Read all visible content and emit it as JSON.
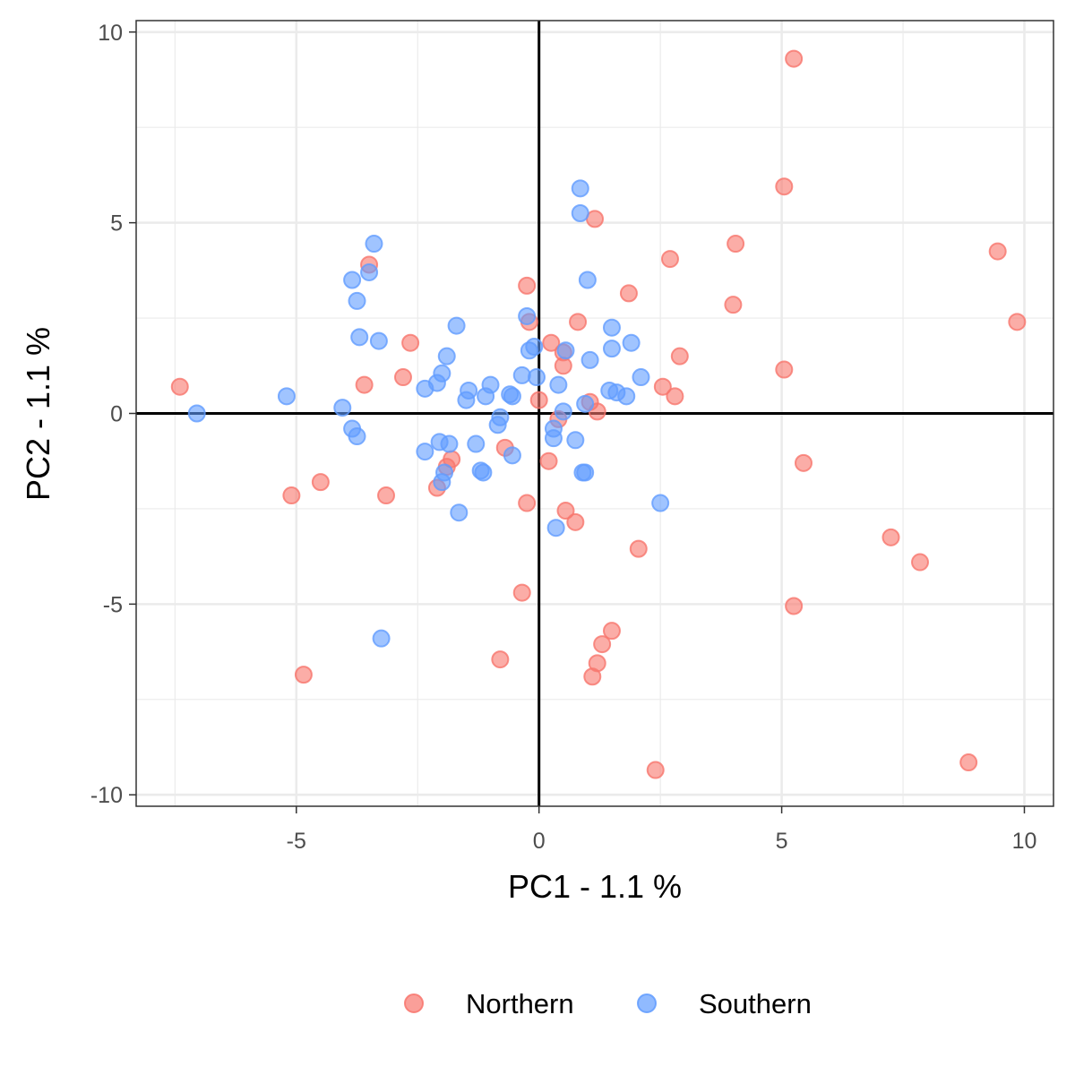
{
  "chart_data": {
    "type": "scatter",
    "title": "",
    "xlabel": "PC1 - 1.1 %",
    "ylabel": "PC2 - 1.1 %",
    "xlim": [
      -8.3,
      10.6
    ],
    "ylim": [
      -10.3,
      10.3
    ],
    "x_ticks": [
      -5,
      0,
      5,
      10
    ],
    "y_ticks": [
      -10,
      -5,
      0,
      5,
      10
    ],
    "x_tick_labels": [
      "-5",
      "0",
      "5",
      "10"
    ],
    "y_tick_labels": [
      "-10",
      "-5",
      "0",
      "5",
      "10"
    ],
    "grid": true,
    "reference_lines": {
      "x": 0,
      "y": 0
    },
    "legend_position": "bottom",
    "series": [
      {
        "name": "Northern",
        "color": "#F8766D",
        "points": [
          [
            5.25,
            9.3
          ],
          [
            5.05,
            5.95
          ],
          [
            1.15,
            5.1
          ],
          [
            4.05,
            4.45
          ],
          [
            9.45,
            4.25
          ],
          [
            2.7,
            4.05
          ],
          [
            -3.5,
            3.9
          ],
          [
            -0.25,
            3.35
          ],
          [
            1.85,
            3.15
          ],
          [
            4.0,
            2.85
          ],
          [
            9.85,
            2.4
          ],
          [
            -0.2,
            2.4
          ],
          [
            0.8,
            2.4
          ],
          [
            -2.65,
            1.85
          ],
          [
            0.25,
            1.85
          ],
          [
            0.5,
            1.6
          ],
          [
            2.9,
            1.5
          ],
          [
            0.5,
            1.25
          ],
          [
            5.05,
            1.15
          ],
          [
            -2.8,
            0.95
          ],
          [
            -7.4,
            0.7
          ],
          [
            -3.6,
            0.75
          ],
          [
            2.55,
            0.7
          ],
          [
            2.8,
            0.45
          ],
          [
            0.0,
            0.35
          ],
          [
            1.05,
            0.3
          ],
          [
            1.2,
            0.05
          ],
          [
            0.4,
            -0.15
          ],
          [
            -0.7,
            -0.9
          ],
          [
            0.2,
            -1.25
          ],
          [
            -1.8,
            -1.2
          ],
          [
            -1.9,
            -1.4
          ],
          [
            5.45,
            -1.3
          ],
          [
            -4.5,
            -1.8
          ],
          [
            -2.1,
            -1.95
          ],
          [
            -5.1,
            -2.15
          ],
          [
            -3.15,
            -2.15
          ],
          [
            -0.25,
            -2.35
          ],
          [
            0.55,
            -2.55
          ],
          [
            0.75,
            -2.85
          ],
          [
            7.25,
            -3.25
          ],
          [
            2.05,
            -3.55
          ],
          [
            7.85,
            -3.9
          ],
          [
            -0.35,
            -4.7
          ],
          [
            5.25,
            -5.05
          ],
          [
            1.5,
            -5.7
          ],
          [
            1.3,
            -6.05
          ],
          [
            -0.8,
            -6.45
          ],
          [
            1.2,
            -6.55
          ],
          [
            1.1,
            -6.9
          ],
          [
            -4.85,
            -6.85
          ],
          [
            8.85,
            -9.15
          ],
          [
            2.4,
            -9.35
          ]
        ]
      },
      {
        "name": "Southern",
        "color": "#619CFF",
        "points": [
          [
            0.85,
            5.9
          ],
          [
            0.85,
            5.25
          ],
          [
            -3.4,
            4.45
          ],
          [
            -3.5,
            3.7
          ],
          [
            -3.85,
            3.5
          ],
          [
            1.0,
            3.5
          ],
          [
            -3.75,
            2.95
          ],
          [
            -0.25,
            2.55
          ],
          [
            -1.7,
            2.3
          ],
          [
            1.5,
            2.25
          ],
          [
            -3.7,
            2.0
          ],
          [
            -3.3,
            1.9
          ],
          [
            1.9,
            1.85
          ],
          [
            -0.1,
            1.75
          ],
          [
            -0.2,
            1.65
          ],
          [
            0.55,
            1.65
          ],
          [
            1.5,
            1.7
          ],
          [
            -1.9,
            1.5
          ],
          [
            1.05,
            1.4
          ],
          [
            -2.0,
            1.05
          ],
          [
            -0.35,
            1.0
          ],
          [
            -0.05,
            0.95
          ],
          [
            2.1,
            0.95
          ],
          [
            -2.1,
            0.8
          ],
          [
            -1.0,
            0.75
          ],
          [
            0.4,
            0.75
          ],
          [
            -2.35,
            0.65
          ],
          [
            -1.45,
            0.6
          ],
          [
            1.45,
            0.6
          ],
          [
            1.6,
            0.55
          ],
          [
            1.8,
            0.45
          ],
          [
            -5.2,
            0.45
          ],
          [
            -1.1,
            0.45
          ],
          [
            -0.55,
            0.45
          ],
          [
            -0.6,
            0.5
          ],
          [
            -1.5,
            0.35
          ],
          [
            0.95,
            0.25
          ],
          [
            -4.05,
            0.15
          ],
          [
            -7.05,
            0.0
          ],
          [
            0.5,
            0.05
          ],
          [
            -0.8,
            -0.1
          ],
          [
            -0.85,
            -0.3
          ],
          [
            0.3,
            -0.4
          ],
          [
            -3.85,
            -0.4
          ],
          [
            -3.75,
            -0.6
          ],
          [
            0.3,
            -0.65
          ],
          [
            0.75,
            -0.7
          ],
          [
            -2.05,
            -0.75
          ],
          [
            -1.85,
            -0.8
          ],
          [
            -1.3,
            -0.8
          ],
          [
            -2.35,
            -1.0
          ],
          [
            -0.55,
            -1.1
          ],
          [
            -1.2,
            -1.5
          ],
          [
            -1.15,
            -1.55
          ],
          [
            0.9,
            -1.55
          ],
          [
            0.95,
            -1.55
          ],
          [
            -1.95,
            -1.55
          ],
          [
            -2.0,
            -1.8
          ],
          [
            2.5,
            -2.35
          ],
          [
            -1.65,
            -2.6
          ],
          [
            0.35,
            -3.0
          ],
          [
            -3.25,
            -5.9
          ]
        ]
      }
    ]
  }
}
